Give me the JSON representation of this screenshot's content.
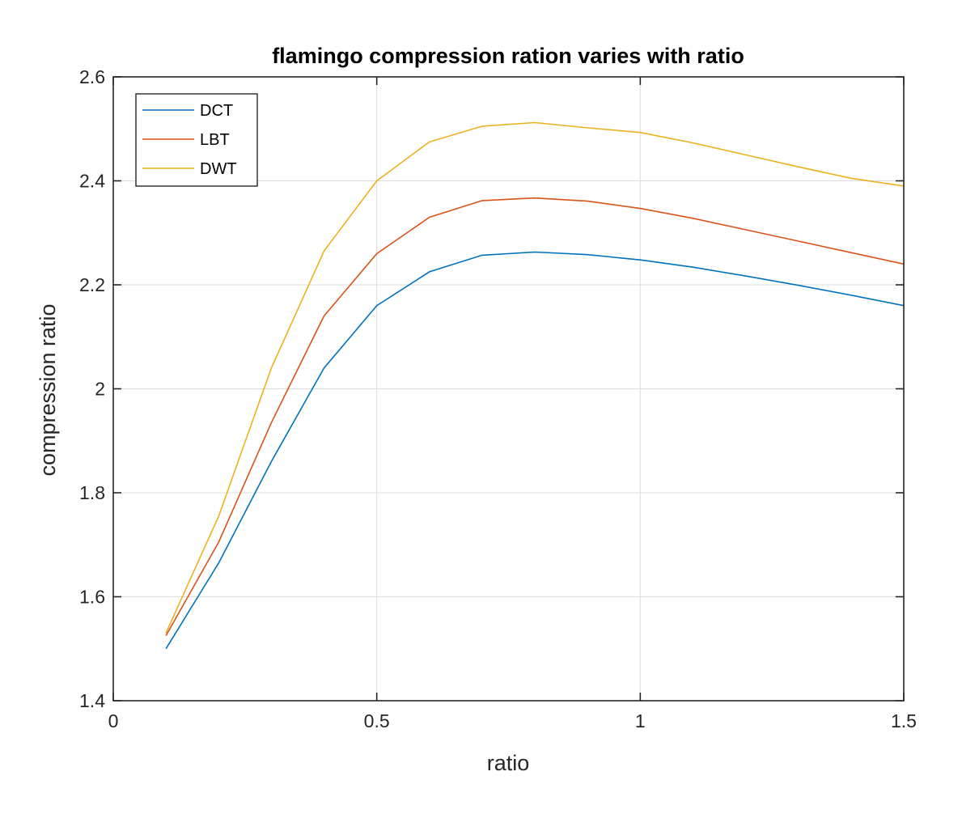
{
  "chart_data": {
    "type": "line",
    "title": "flamingo compression ration varies with ratio",
    "xlabel": "ratio",
    "ylabel": "compression ratio",
    "xlim": [
      0,
      1.5
    ],
    "ylim": [
      1.4,
      2.6
    ],
    "xticks": [
      0,
      0.5,
      1,
      1.5
    ],
    "xtick_labels": [
      "0",
      "0.5",
      "1",
      "1.5"
    ],
    "yticks": [
      1.4,
      1.6,
      1.8,
      2.0,
      2.2,
      2.4,
      2.6
    ],
    "ytick_labels": [
      "1.4",
      "1.6",
      "1.8",
      "2",
      "2.2",
      "2.4",
      "2.6"
    ],
    "grid": true,
    "legend_position": "top-left",
    "x": [
      0.1,
      0.2,
      0.3,
      0.4,
      0.5,
      0.6,
      0.7,
      0.8,
      0.9,
      1.0,
      1.1,
      1.2,
      1.3,
      1.4,
      1.5
    ],
    "series": [
      {
        "name": "DCT",
        "color": "#0072bd",
        "values": [
          1.5,
          1.665,
          1.86,
          2.04,
          2.16,
          2.225,
          2.257,
          2.263,
          2.258,
          2.248,
          2.234,
          2.217,
          2.199,
          2.18,
          2.16
        ]
      },
      {
        "name": "LBT",
        "color": "#d95319",
        "values": [
          1.525,
          1.705,
          1.935,
          2.14,
          2.26,
          2.33,
          2.362,
          2.367,
          2.361,
          2.347,
          2.328,
          2.306,
          2.284,
          2.262,
          2.24
        ]
      },
      {
        "name": "DWT",
        "color": "#edb120",
        "values": [
          1.53,
          1.755,
          2.04,
          2.265,
          2.4,
          2.475,
          2.505,
          2.512,
          2.502,
          2.493,
          2.473,
          2.45,
          2.427,
          2.405,
          2.39
        ]
      }
    ]
  }
}
